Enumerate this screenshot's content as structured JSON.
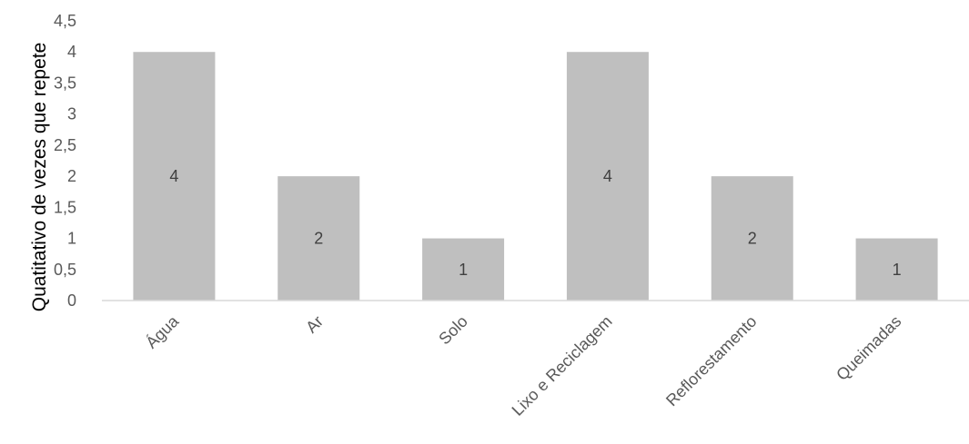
{
  "chart_data": {
    "type": "bar",
    "title": "",
    "xlabel": "",
    "ylabel": "Quatitativo de vezes que repete",
    "categories": [
      "Água",
      "Ar",
      "Solo",
      "Lixo e Reciclagem",
      "Reflorestamento",
      "Queimadas"
    ],
    "values": [
      4,
      2,
      1,
      4,
      2,
      1
    ],
    "data_labels": [
      "4",
      "2",
      "1",
      "4",
      "2",
      "1"
    ],
    "ylim": [
      0,
      4.5
    ],
    "yticks": [
      "0",
      "0,5",
      "1",
      "1,5",
      "2",
      "2,5",
      "3",
      "3,5",
      "4",
      "4,5"
    ],
    "grid": false,
    "legend": "none",
    "bar_color": "#BFBFBF",
    "axis_color": "#D9D9D9"
  }
}
